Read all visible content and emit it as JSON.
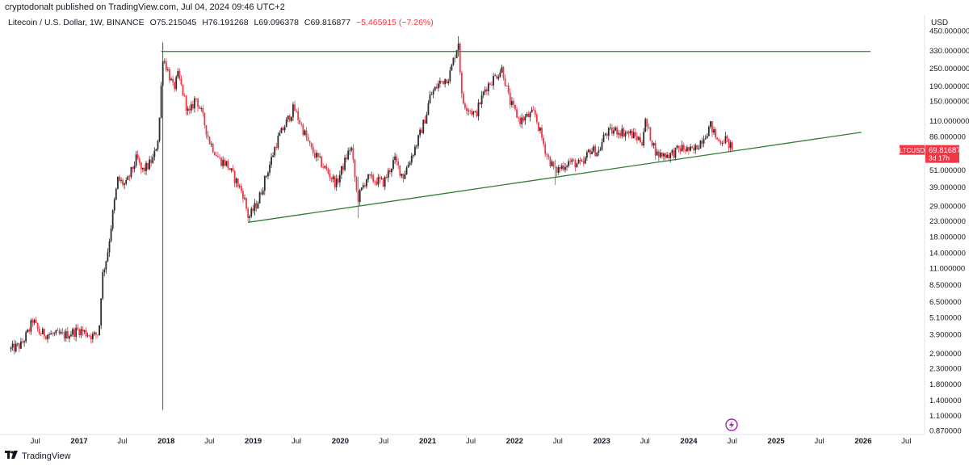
{
  "header": {
    "published_by": "cryptodonalt published on TradingView.com, Jul 04, 2024 09:46 UTC+2"
  },
  "legend": {
    "symbol": "Litecoin / U.S. Dollar, 1W, BINANCE",
    "open": "O75.215045",
    "high": "H76.191268",
    "low": "L69.096378",
    "close": "C69.816877",
    "change": "−5.465915 (−7.26%)"
  },
  "price_axis": {
    "currency": "USD",
    "ticks": [
      "450.000000",
      "330.000000",
      "250.000000",
      "190.000000",
      "150.000000",
      "110.000000",
      "86.000000",
      "51.000000",
      "39.000000",
      "29.000000",
      "23.000000",
      "18.000000",
      "14.000000",
      "11.000000",
      "8.500000",
      "6.500000",
      "5.100000",
      "3.900000",
      "2.900000",
      "2.300000",
      "1.800000",
      "1.400000",
      "1.100000",
      "0.870000"
    ],
    "last_price_label": {
      "symbol": "LTCUSD",
      "price": "69.816877",
      "countdown": "3d 17h",
      "color": "#f23645"
    }
  },
  "time_axis": {
    "ticks": [
      "Jul",
      "2017",
      "Jul",
      "2018",
      "Jul",
      "2019",
      "Jul",
      "2020",
      "Jul",
      "2021",
      "Jul",
      "2022",
      "Jul",
      "2023",
      "Jul",
      "2024",
      "Jul",
      "2025",
      "Jul",
      "2026",
      "Jul"
    ]
  },
  "footer": {
    "brand": "TradingView",
    "flash_icon": "lightning-icon"
  },
  "colors": {
    "up": "#2b2b2b",
    "down": "#f23645",
    "trendline": "#2e7d32",
    "grid": "#e0e3eb"
  },
  "chart_data": {
    "type": "candlestick",
    "scale": "log",
    "title": "Litecoin / U.S. Dollar, 1W, BINANCE",
    "ylim": [
      0.8,
      480
    ],
    "xlim": [
      "2016-03-21",
      "2027-01-01"
    ],
    "grid": false,
    "trendlines": [
      {
        "name": "resistance",
        "points": [
          [
            "2017-12-11",
            325
          ],
          [
            "2026-02-01",
            325
          ]
        ]
      },
      {
        "name": "support",
        "points": [
          [
            "2018-12-10",
            22.5
          ],
          [
            "2025-12-25",
            92
          ]
        ]
      }
    ],
    "anchors": [
      [
        "2016-03-21",
        3.1
      ],
      [
        "2016-05-02",
        3.3
      ],
      [
        "2016-06-06",
        4.2
      ],
      [
        "2016-06-20",
        4.9
      ],
      [
        "2016-07-18",
        4.0
      ],
      [
        "2016-09-01",
        3.9
      ],
      [
        "2016-11-01",
        3.85
      ],
      [
        "2017-01-01",
        4.2
      ],
      [
        "2017-03-01",
        3.8
      ],
      [
        "2017-03-25",
        4.0
      ],
      [
        "2017-04-07",
        9.5
      ],
      [
        "2017-04-30",
        14
      ],
      [
        "2017-05-25",
        28
      ],
      [
        "2017-06-12",
        44
      ],
      [
        "2017-07-15",
        40
      ],
      [
        "2017-08-31",
        62
      ],
      [
        "2017-09-20",
        50
      ],
      [
        "2017-10-15",
        54
      ],
      [
        "2017-11-10",
        62
      ],
      [
        "2017-11-30",
        88
      ],
      [
        "2017-12-18",
        300
      ],
      [
        "2018-01-08",
        240
      ],
      [
        "2018-02-01",
        180
      ],
      [
        "2018-02-20",
        225
      ],
      [
        "2018-04-06",
        120
      ],
      [
        "2018-05-05",
        160
      ],
      [
        "2018-06-01",
        120
      ],
      [
        "2018-07-01",
        80
      ],
      [
        "2018-08-12",
        60
      ],
      [
        "2018-09-12",
        56
      ],
      [
        "2018-11-20",
        35
      ],
      [
        "2018-12-12",
        24
      ],
      [
        "2019-01-20",
        31
      ],
      [
        "2019-03-10",
        55
      ],
      [
        "2019-04-10",
        80
      ],
      [
        "2019-06-20",
        135
      ],
      [
        "2019-08-01",
        93
      ],
      [
        "2019-09-01",
        70
      ],
      [
        "2019-10-15",
        56
      ],
      [
        "2019-12-15",
        41
      ],
      [
        "2020-02-15",
        75
      ],
      [
        "2020-03-13",
        32
      ],
      [
        "2020-04-20",
        45
      ],
      [
        "2020-07-01",
        42
      ],
      [
        "2020-08-15",
        60
      ],
      [
        "2020-09-20",
        46
      ],
      [
        "2020-11-20",
        80
      ],
      [
        "2020-12-26",
        120
      ],
      [
        "2021-01-10",
        160
      ],
      [
        "2021-02-20",
        200
      ],
      [
        "2021-04-01",
        220
      ],
      [
        "2021-05-10",
        380
      ],
      [
        "2021-05-25",
        150
      ],
      [
        "2021-07-20",
        120
      ],
      [
        "2021-09-01",
        185
      ],
      [
        "2021-11-10",
        250
      ],
      [
        "2021-12-10",
        150
      ],
      [
        "2022-01-22",
        110
      ],
      [
        "2022-03-25",
        125
      ],
      [
        "2022-05-15",
        65
      ],
      [
        "2022-06-20",
        50
      ],
      [
        "2022-08-15",
        58
      ],
      [
        "2022-10-15",
        55
      ],
      [
        "2022-11-10",
        70
      ],
      [
        "2022-12-20",
        68
      ],
      [
        "2023-01-15",
        90
      ],
      [
        "2023-03-01",
        95
      ],
      [
        "2023-05-01",
        90
      ],
      [
        "2023-06-20",
        80
      ],
      [
        "2023-07-01",
        110
      ],
      [
        "2023-08-20",
        65
      ],
      [
        "2023-10-15",
        65
      ],
      [
        "2023-12-01",
        72
      ],
      [
        "2024-01-20",
        68
      ],
      [
        "2024-03-01",
        85
      ],
      [
        "2024-04-01",
        102
      ],
      [
        "2024-05-01",
        80
      ],
      [
        "2024-06-01",
        83
      ],
      [
        "2024-07-04",
        69.8
      ]
    ],
    "wick_extremes": [
      {
        "date": "2017-12-18",
        "high": 375,
        "low": 1.2
      },
      {
        "date": "2021-05-10",
        "high": 413,
        "low": 300
      },
      {
        "date": "2020-03-13",
        "high": 46,
        "low": 24
      },
      {
        "date": "2022-06-20",
        "high": 60,
        "low": 40.3
      }
    ]
  }
}
